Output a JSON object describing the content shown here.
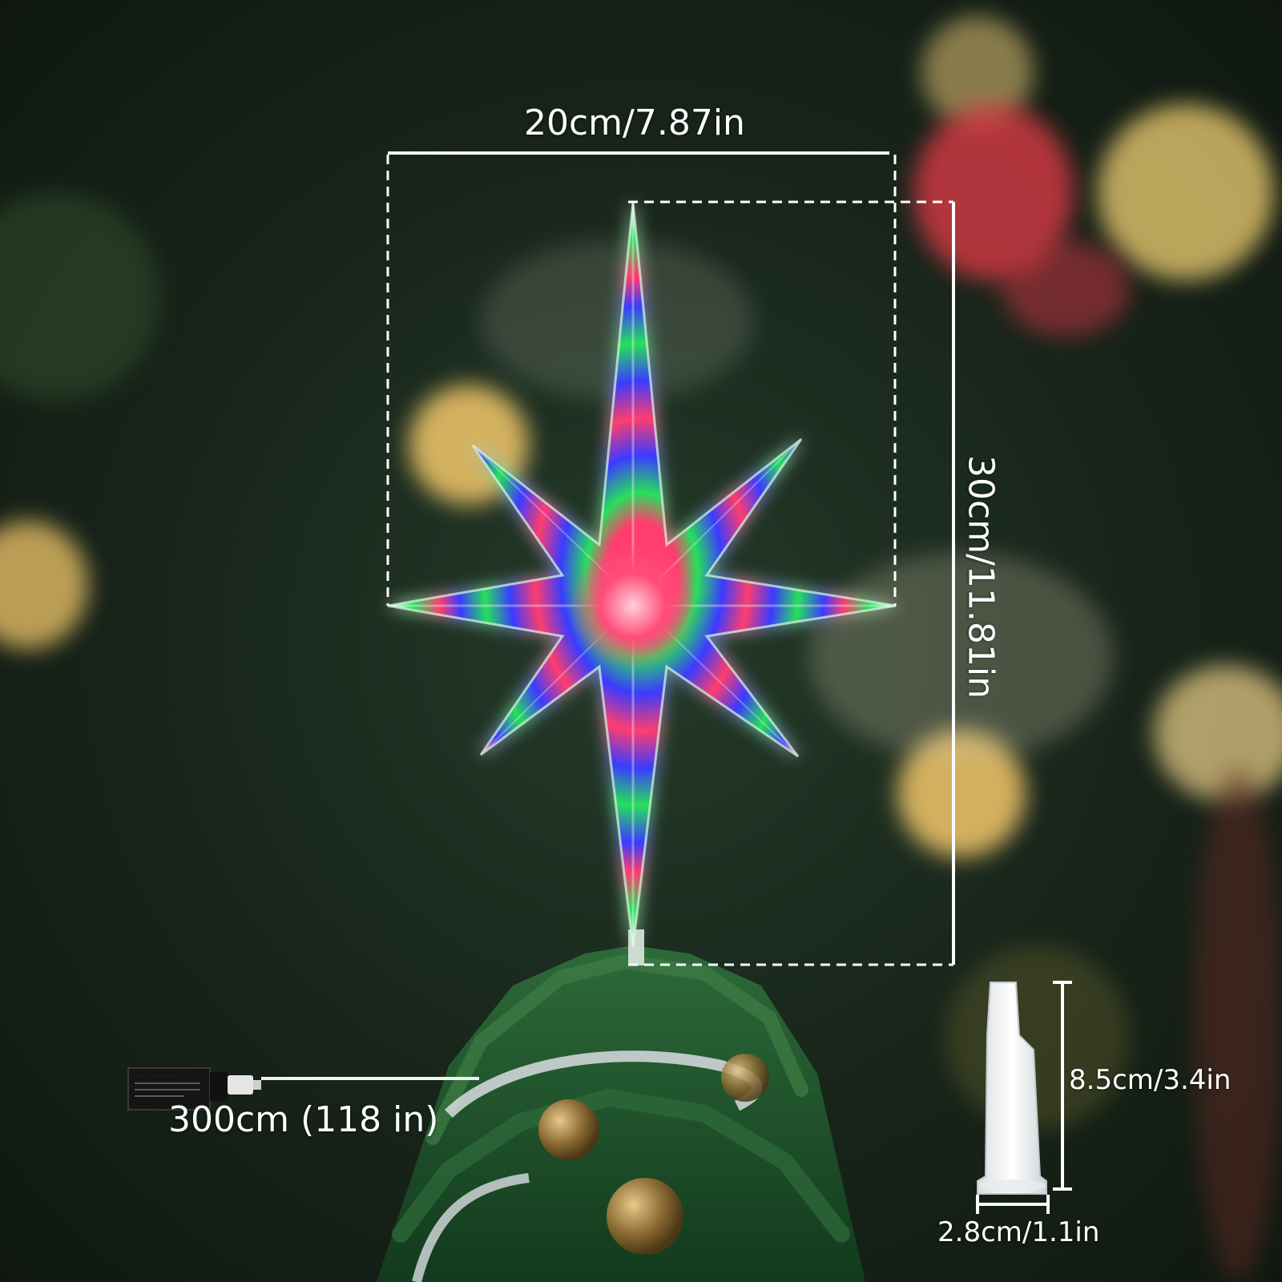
{
  "dimensions": {
    "star_width": "20cm/7.87in",
    "star_height": "30cm/11.81in",
    "cable_length": "300cm (118 in)",
    "adapter_height": "8.5cm/3.4in",
    "adapter_width": "2.8cm/1.1in"
  },
  "colors": {
    "led_green": "#27e05a",
    "led_red": "#ff3d6e",
    "led_blue": "#3a3bff",
    "bokeh_gold": "#f3c86a",
    "bokeh_red": "#d83a45",
    "tree_green": "#1f4f2a"
  },
  "icons": {
    "star": "eight-point-led-star-icon",
    "adapter": "power-adapter-icon",
    "base": "tree-topper-base-icon"
  }
}
